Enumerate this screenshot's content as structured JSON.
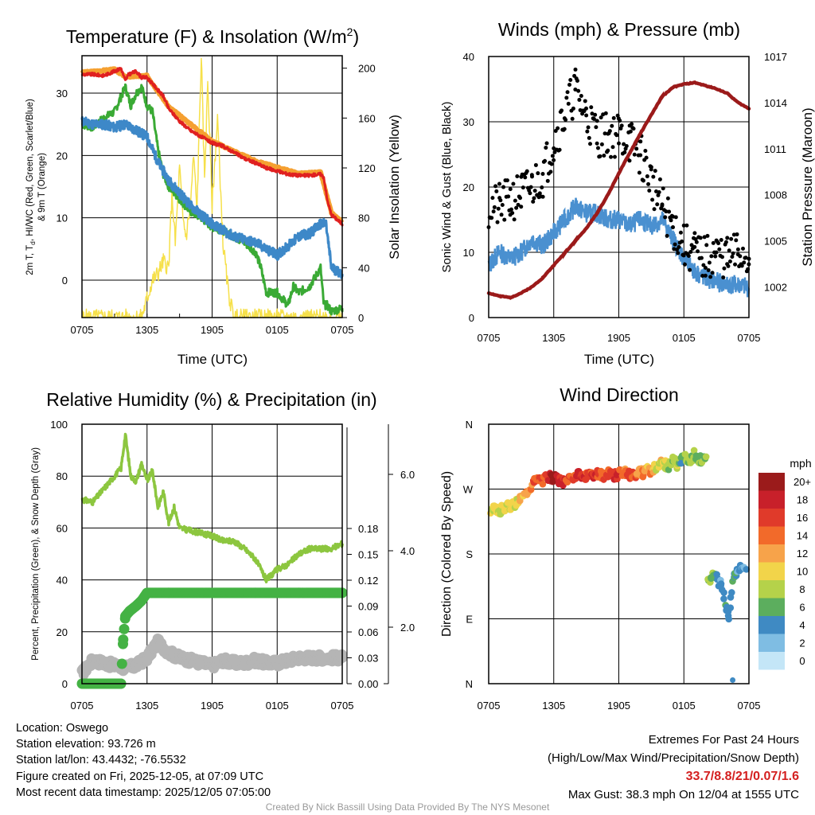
{
  "panels": {
    "temperature": {
      "title": "Temperature (F) & Insolation (W/m",
      "title_sup": "2",
      "title_end": ")",
      "ylabel_left_1": "2m T, T",
      "ylabel_left_sub1": "d",
      "ylabel_left_2": ", HI/WC (Red, Green, Scarlet/Blue)",
      "ylabel_left_3": "& 9m T (Orange)",
      "ylabel_right": "Solar Insolation (Yellow)",
      "xlabel": "Time (UTC)"
    },
    "winds": {
      "title": "Winds (mph) & Pressure (mb)",
      "ylabel_left": "Sonic Wind & Gust (Blue, Black)",
      "ylabel_right": "Station Pressure (Maroon)",
      "xlabel": "Time (UTC)"
    },
    "humidity": {
      "title": "Relative Humidity (%) & Precipitation (in)",
      "ylabel_left": "Percent, Precipitation (Green), & Snow Depth (Gray)"
    },
    "direction": {
      "title": "Wind Direction",
      "ylabel_left": "Direction (Colored By Speed)",
      "legend_title": "mph"
    }
  },
  "chart_data": [
    {
      "type": "line",
      "title": "Temperature (F) & Insolation (W/m2)",
      "xlabel": "Time (UTC)",
      "ylabel": "2m T, Td, HI/WC (Red, Green, Scarlet/Blue) & 9m T (Orange)",
      "y2label": "Solar Insolation (Yellow)",
      "x_ticks": [
        "0705",
        "1305",
        "1905",
        "0105",
        "0705"
      ],
      "xlim_hours": [
        0,
        24
      ],
      "ylim": [
        -6,
        36
      ],
      "y_ticks": [
        0,
        10,
        20,
        30
      ],
      "y2lim": [
        0,
        210
      ],
      "y2_ticks": [
        0,
        40,
        80,
        120,
        160,
        200
      ],
      "series": [
        {
          "name": "2m T",
          "color": "#e02020",
          "axis": "left",
          "x": [
            0,
            1,
            2,
            3,
            3.6,
            4,
            4.3,
            5,
            5.5,
            6,
            7,
            7.5,
            8,
            9,
            10,
            11,
            12,
            13,
            14,
            15,
            16,
            17,
            18,
            19,
            20,
            21,
            22,
            22.3,
            22.6,
            23,
            24
          ],
          "y": [
            33,
            33,
            32.8,
            33.5,
            34,
            32,
            33,
            33.5,
            32.5,
            32.5,
            30.5,
            29.5,
            27.5,
            25.5,
            24,
            23,
            22,
            21.5,
            20.5,
            19.5,
            18.8,
            18,
            17.5,
            17,
            16.8,
            16.8,
            17,
            16.5,
            13,
            10.5,
            9
          ]
        },
        {
          "name": "9m T",
          "color": "#f5a030",
          "axis": "left",
          "x": [
            0,
            3,
            4,
            6,
            8,
            12,
            16,
            20,
            22,
            23,
            24
          ],
          "y": [
            33.3,
            33.8,
            32.6,
            32.8,
            27.8,
            22.3,
            19.1,
            17.1,
            17.3,
            10.8,
            9.3
          ]
        },
        {
          "name": "Td",
          "color": "#3aaa35",
          "axis": "left",
          "x": [
            0,
            1,
            2,
            3,
            3.5,
            4,
            4.5,
            5,
            5.5,
            6,
            6.5,
            7,
            7.5,
            8,
            9,
            10,
            11,
            12,
            13,
            14,
            15,
            16,
            16.5,
            17,
            18,
            19,
            19.5,
            20,
            21,
            22,
            22.3,
            22.6,
            23,
            24
          ],
          "y": [
            25,
            24.5,
            26,
            27,
            29,
            31,
            28,
            30,
            31,
            28,
            27,
            21,
            17,
            15,
            13,
            11,
            10,
            8.5,
            8,
            7,
            6,
            4.5,
            2,
            -2,
            -2,
            -4,
            -1,
            -2,
            -1,
            2,
            -4,
            -4,
            -5,
            -4.5
          ]
        },
        {
          "name": "HI/WC",
          "color": "#3d88c8",
          "axis": "left",
          "x": [
            0,
            1,
            2,
            3,
            4,
            5,
            6,
            7,
            8,
            9,
            10,
            11,
            12,
            13,
            14,
            15,
            16,
            17,
            18,
            19,
            20,
            21,
            22,
            22.5,
            23,
            24
          ],
          "y": [
            25.5,
            25,
            25,
            24.5,
            25,
            24,
            23,
            19,
            16,
            14,
            12,
            10.5,
            9,
            8,
            7,
            6.5,
            6,
            5,
            4,
            5.5,
            7,
            7.5,
            9,
            9,
            2,
            1
          ]
        },
        {
          "name": "Solar Insolation",
          "color": "#f6e04a",
          "axis": "right",
          "x": [
            0,
            5.5,
            6,
            6.5,
            7,
            7.5,
            8,
            8.3,
            8.6,
            9,
            9.3,
            9.6,
            10,
            10.3,
            10.6,
            11,
            11.3,
            11.6,
            12,
            12.5,
            13,
            13.5,
            14,
            24
          ],
          "y": [
            0,
            0,
            15,
            30,
            35,
            45,
            40,
            100,
            60,
            120,
            80,
            65,
            90,
            130,
            85,
            210,
            110,
            190,
            90,
            160,
            60,
            20,
            0,
            0
          ]
        }
      ]
    },
    {
      "type": "line",
      "title": "Winds (mph) & Pressure (mb)",
      "xlabel": "Time (UTC)",
      "ylabel": "Sonic Wind & Gust (Blue, Black)",
      "y2label": "Station Pressure (Maroon)",
      "x_ticks": [
        "0705",
        "1305",
        "1905",
        "0105",
        "0705"
      ],
      "xlim_hours": [
        0,
        24
      ],
      "ylim": [
        0,
        40
      ],
      "y_ticks": [
        0,
        10,
        20,
        30,
        40
      ],
      "y2lim": [
        1000,
        1017
      ],
      "y2_ticks": [
        1002,
        1005,
        1008,
        1011,
        1014,
        1017
      ],
      "max_gust": 38.3,
      "series": [
        {
          "name": "Sonic Wind",
          "color": "#4a90d0",
          "axis": "left",
          "x": [
            0,
            1,
            2,
            3,
            4,
            5,
            6,
            7,
            8,
            9,
            10,
            11,
            12,
            13,
            14,
            15,
            16,
            17,
            18,
            19,
            20,
            21,
            22,
            23,
            24
          ],
          "y": [
            8,
            10,
            9,
            10,
            12,
            11,
            13,
            15,
            17,
            16,
            16,
            15,
            15,
            14,
            15,
            14,
            15,
            12,
            9,
            7,
            6,
            5.5,
            5,
            5,
            4.5
          ]
        },
        {
          "name": "Gust",
          "color": "#000000",
          "axis": "left",
          "marker": "dot",
          "x": [
            0,
            1,
            2,
            3,
            4,
            5,
            6,
            7,
            8,
            9,
            10,
            11,
            12,
            13,
            14,
            15,
            16,
            17,
            18,
            19,
            20,
            21,
            22,
            23,
            24
          ],
          "y": [
            17,
            17,
            18,
            19,
            20,
            22,
            27,
            31,
            35,
            31,
            28,
            28,
            28,
            27,
            25,
            21,
            17,
            14,
            11,
            10,
            9,
            10,
            9,
            10,
            9
          ]
        },
        {
          "name": "Station Pressure",
          "color": "#9b1a1a",
          "axis": "right",
          "x": [
            0,
            1,
            2,
            3,
            4,
            5,
            6,
            7,
            8,
            9,
            10,
            11,
            12,
            13,
            14,
            15,
            16,
            17,
            18,
            19,
            20,
            21,
            22,
            23,
            24
          ],
          "y": [
            1001.6,
            1001.4,
            1001.3,
            1001.6,
            1002,
            1002.6,
            1003.4,
            1004.2,
            1005,
            1005.8,
            1006.8,
            1008,
            1009.4,
            1010.7,
            1012,
            1013.2,
            1014.4,
            1015,
            1015.2,
            1015.3,
            1015.1,
            1014.9,
            1014.6,
            1014,
            1013.6
          ]
        }
      ]
    },
    {
      "type": "line",
      "title": "Relative Humidity (%) & Precipitation (in)",
      "ylabel": "Percent, Precipitation (Green), & Snow Depth (Gray)",
      "x_ticks": [
        "0705",
        "1305",
        "1905",
        "0105",
        "0705"
      ],
      "xlim_hours": [
        0,
        24
      ],
      "ylim": [
        0,
        100
      ],
      "y_ticks": [
        0,
        20,
        40,
        60,
        80,
        100
      ],
      "y2_ticks": [
        "0.00",
        "0.03",
        "0.06",
        "0.09",
        "0.12",
        "0.15",
        "0.18"
      ],
      "y3_ticks": [
        "2.0",
        "4.0",
        "6.0"
      ],
      "series": [
        {
          "name": "Relative Humidity",
          "color": "#8cc63f",
          "x": [
            0,
            1,
            2,
            3,
            3.6,
            4,
            4.5,
            5,
            5.5,
            6,
            6.5,
            7,
            7.5,
            8,
            8.5,
            9,
            10,
            11,
            12,
            13,
            14,
            15,
            16,
            16.5,
            17,
            18,
            19,
            20,
            21,
            22,
            23,
            24
          ],
          "y": [
            71,
            70,
            75,
            80,
            83,
            96,
            80,
            78,
            85,
            78,
            82,
            68,
            74,
            62,
            68,
            60,
            59,
            58,
            57,
            55,
            55,
            52,
            48,
            44,
            40,
            44,
            46,
            50,
            52,
            52,
            52,
            54
          ]
        },
        {
          "name": "Precipitation",
          "color": "#44b244",
          "marker": "dot",
          "x": [
            0,
            1,
            2,
            3,
            3.6,
            3.8,
            4,
            4.4,
            5,
            5.5,
            6,
            8,
            12,
            16,
            20,
            24
          ],
          "y": [
            0,
            0,
            0,
            0,
            0,
            17,
            26,
            28,
            30,
            32,
            35,
            35,
            35,
            35,
            35,
            35
          ]
        },
        {
          "name": "Snow Depth",
          "color": "#b5b5b5",
          "marker": "dot",
          "x": [
            0,
            1,
            2,
            3,
            4,
            5,
            6,
            6.5,
            7,
            8,
            9,
            10,
            11,
            12,
            13,
            14,
            15,
            16,
            17,
            18,
            19,
            20,
            21,
            22,
            23,
            24
          ],
          "y": [
            4,
            9,
            8,
            7,
            6,
            7,
            10,
            13,
            16,
            12,
            10,
            9,
            8,
            7,
            9,
            8,
            8,
            9,
            8,
            8,
            9,
            10,
            10,
            10,
            10,
            10
          ]
        }
      ]
    },
    {
      "type": "scatter",
      "title": "Wind Direction",
      "ylabel": "Direction (Colored By Speed)",
      "x_ticks": [
        "0705",
        "1305",
        "1905",
        "0105",
        "0705"
      ],
      "xlim_hours": [
        0,
        24
      ],
      "y_ticks": [
        "N",
        "E",
        "S",
        "W",
        "N"
      ],
      "ylim_deg": [
        0,
        360
      ],
      "legend": {
        "title": "mph",
        "labels": [
          "20+",
          "18",
          "16",
          "14",
          "12",
          "10",
          "8",
          "6",
          "4",
          "2",
          "0"
        ],
        "colors": [
          "#9b1b1b",
          "#c8202a",
          "#e03a2a",
          "#f26a2a",
          "#f7a34a",
          "#f2d44a",
          "#b5d24a",
          "#5cae5e",
          "#3f8ac3",
          "#7fbde3",
          "#c4e6f7"
        ]
      },
      "series": [
        {
          "name": "Direction",
          "x": [
            0.2,
            0.6,
            1,
            1.4,
            1.8,
            2.2,
            2.6,
            3,
            3.4,
            3.8,
            4.2,
            4.6,
            5,
            5.4,
            5.8,
            6.2,
            6.6,
            7,
            7.4,
            7.8,
            8.2,
            8.6,
            9,
            9.4,
            9.8,
            10.2,
            10.6,
            11,
            11.4,
            11.8,
            12.2,
            12.6,
            13,
            13.4,
            13.8,
            14.2,
            14.6,
            15,
            15.4,
            15.8,
            16.2,
            16.6,
            17,
            17.4,
            17.8,
            18.2,
            18.6,
            19,
            19.4,
            19.8,
            20.2,
            20.6,
            21,
            21.4,
            21.8,
            22.2,
            22.6,
            22.8,
            23,
            23.4,
            23.8
          ],
          "y": [
            240,
            242,
            240,
            244,
            246,
            248,
            252,
            258,
            264,
            272,
            280,
            284,
            282,
            288,
            286,
            285,
            282,
            280,
            286,
            288,
            290,
            288,
            287,
            289,
            291,
            290,
            288,
            292,
            289,
            290,
            292,
            294,
            290,
            288,
            296,
            292,
            298,
            295,
            300,
            308,
            305,
            302,
            312,
            300,
            310,
            315,
            308,
            318,
            312,
            310,
            140,
            152,
            150,
            135,
            112,
            95,
            150,
            155,
            158,
            160,
            165
          ],
          "speed": [
            8,
            10,
            9,
            8,
            9,
            10,
            9,
            11,
            12,
            13,
            15,
            14,
            14,
            16,
            20,
            21,
            18,
            16,
            15,
            15,
            17,
            18,
            16,
            16,
            17,
            15,
            14,
            16,
            15,
            17,
            14,
            13,
            16,
            15,
            12,
            14,
            11,
            13,
            9,
            10,
            9,
            8,
            7,
            9,
            6,
            7,
            8,
            6,
            7,
            6,
            7,
            8,
            4,
            3,
            5,
            4,
            6,
            5,
            4,
            3,
            4
          ]
        }
      ]
    }
  ],
  "footer": {
    "location": "Location: Oswego",
    "elevation": "Station elevation: 93.726 m",
    "latlon": "Station lat/lon: 43.4432; -76.5532",
    "created": "Figure created on Fri, 2025-12-05, at 07:09 UTC",
    "recent": "Most recent data timestamp: 2025/12/05 07:05:00",
    "extremes_title": "Extremes For Past 24 Hours",
    "extremes_legend": "(High/Low/Max Wind/Precipitation/Snow Depth)",
    "extremes_values": "33.7/8.8/21/0.07/1.6",
    "max_gust": "Max Gust: 38.3 mph On 12/04 at 1555 UTC",
    "credit": "Created By Nick Bassill Using Data Provided By The NYS Mesonet"
  }
}
